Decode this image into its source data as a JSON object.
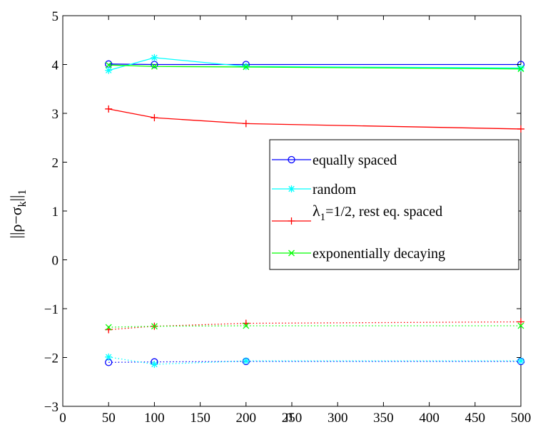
{
  "chart_data": {
    "type": "line",
    "title": "",
    "xlabel": "n",
    "ylabel": "||ρ−σ_k||_1",
    "ylabel_parts": {
      "main": "||ρ−σ",
      "sub_k": "k",
      "bars": "||",
      "sub_1": "1"
    },
    "xlim": [
      0,
      500
    ],
    "ylim": [
      -3,
      5
    ],
    "xticks": [
      0,
      50,
      100,
      150,
      200,
      250,
      300,
      350,
      400,
      450,
      500
    ],
    "yticks": [
      -3,
      -2,
      -1,
      0,
      1,
      2,
      3,
      4,
      5
    ],
    "x": [
      50,
      100,
      200,
      500
    ],
    "grid": false,
    "legend_position": "right",
    "series": [
      {
        "name": "equally spaced",
        "color": "#0000ff",
        "marker": "circle",
        "line": "solid",
        "values": [
          4.01,
          4.0,
          4.0,
          4.0
        ]
      },
      {
        "name": "random",
        "color": "#00ffff",
        "marker": "star",
        "line": "solid",
        "values": [
          3.88,
          4.14,
          3.96,
          3.93
        ]
      },
      {
        "name": "λ_1=1/2, rest eq. spaced",
        "color": "#ff0000",
        "marker": "plus",
        "line": "solid",
        "values": [
          3.09,
          2.91,
          2.79,
          2.68
        ]
      },
      {
        "name": "exponentially decaying",
        "color": "#00ff00",
        "marker": "x",
        "line": "solid",
        "values": [
          3.99,
          3.96,
          3.95,
          3.91
        ]
      },
      {
        "name": "",
        "color": "#0000ff",
        "marker": "circle",
        "line": "dotted",
        "values": [
          -2.1,
          -2.09,
          -2.08,
          -2.08
        ]
      },
      {
        "name": "",
        "color": "#00ffff",
        "marker": "star",
        "line": "dotted",
        "values": [
          -1.99,
          -2.14,
          -2.07,
          -2.07
        ]
      },
      {
        "name": "",
        "color": "#ff0000",
        "marker": "plus",
        "line": "dotted",
        "values": [
          -1.43,
          -1.36,
          -1.3,
          -1.27
        ]
      },
      {
        "name": "",
        "color": "#00ff00",
        "marker": "x",
        "line": "dotted",
        "values": [
          -1.38,
          -1.36,
          -1.35,
          -1.35
        ]
      }
    ],
    "legend": [
      {
        "label": "equally spaced",
        "series_index": 0
      },
      {
        "label": "random",
        "series_index": 1
      },
      {
        "label_main": "λ",
        "label_sub": "1",
        "label_rest": "=1/2, rest eq. spaced",
        "series_index": 2
      },
      {
        "label": "exponentially decaying",
        "series_index": 3
      }
    ]
  }
}
